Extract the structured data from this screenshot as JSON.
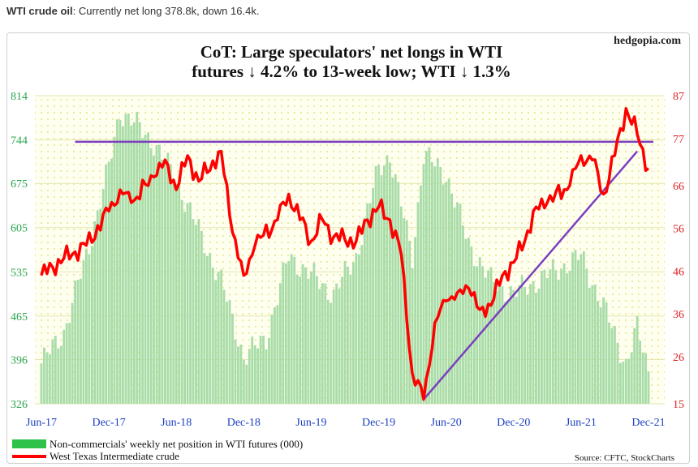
{
  "caption": {
    "bold": "WTI crude oil",
    "text": ": Currently net long 378.8k, down 16.4k."
  },
  "colors": {
    "bars": "#a8dca8",
    "line": "#ff0000",
    "hline": "#7b3fbf",
    "plot_bg": "#fffff0",
    "dots": "#eaea99"
  },
  "chart_data": {
    "type": "bar",
    "title": "CoT: Large speculators' net longs in WTI",
    "subtitle": "futures ↓ 4.2% to 13-week low; WTI ↓ 1.3%",
    "watermark": "hedgopia.com",
    "source": "Source: CFTC, StockCharts",
    "left_axis": {
      "ticks": [
        326,
        396,
        465,
        535,
        605,
        675,
        744,
        814
      ],
      "range": [
        326,
        814
      ]
    },
    "right_axis": {
      "ticks": [
        15,
        26,
        36,
        46,
        56,
        66,
        77,
        87
      ],
      "range": [
        15,
        87
      ]
    },
    "x_ticks": [
      "Jun-17",
      "Dec-17",
      "Jun-18",
      "Dec-18",
      "Jun-19",
      "Dec-19",
      "Jun-20",
      "Dec-20",
      "Jun-21",
      "Dec-21"
    ],
    "legend": [
      "Non-commercials' weekly net position in WTI futures (000)",
      "West Texas Intermediate crude"
    ],
    "grid": true,
    "horizontal_line": 741,
    "trend_line": {
      "from": [
        "Apr-20",
        16
      ],
      "to": [
        "Nov-21",
        74
      ]
    },
    "series": [
      {
        "name": "Non-commercials' weekly net position in WTI futures (000)",
        "axis": "left",
        "points": [
          [
            "Jun-17",
            390
          ],
          [
            "Aug-17",
            440
          ],
          [
            "Oct-17",
            560
          ],
          [
            "Dec-17",
            700
          ],
          [
            "Jan-18",
            790
          ],
          [
            "Feb-18",
            775
          ],
          [
            "Apr-18",
            740
          ],
          [
            "Jun-18",
            680
          ],
          [
            "Aug-18",
            600
          ],
          [
            "Oct-18",
            520
          ],
          [
            "Dec-18",
            400
          ],
          [
            "Feb-19",
            430
          ],
          [
            "Apr-19",
            560
          ],
          [
            "Jun-19",
            530
          ],
          [
            "Aug-19",
            500
          ],
          [
            "Oct-19",
            560
          ],
          [
            "Dec-19",
            700
          ],
          [
            "Jan-20",
            720
          ],
          [
            "Mar-20",
            560
          ],
          [
            "Apr-20",
            720
          ],
          [
            "Jun-20",
            690
          ],
          [
            "Aug-20",
            580
          ],
          [
            "Oct-20",
            520
          ],
          [
            "Dec-20",
            500
          ],
          [
            "Feb-21",
            520
          ],
          [
            "Apr-21",
            540
          ],
          [
            "Jun-21",
            560
          ],
          [
            "Aug-21",
            480
          ],
          [
            "Oct-21",
            390
          ],
          [
            "Nov-21",
            445
          ],
          [
            "Dec-21",
            378.8
          ]
        ]
      },
      {
        "name": "West Texas Intermediate crude",
        "axis": "right",
        "points": [
          [
            "Jun-17",
            45
          ],
          [
            "Aug-17",
            49
          ],
          [
            "Oct-17",
            52
          ],
          [
            "Dec-17",
            60
          ],
          [
            "Jan-18",
            65
          ],
          [
            "Feb-18",
            62
          ],
          [
            "Apr-18",
            68
          ],
          [
            "May-18",
            72
          ],
          [
            "Jun-18",
            65
          ],
          [
            "Jul-18",
            73
          ],
          [
            "Aug-18",
            67
          ],
          [
            "Oct-18",
            74
          ],
          [
            "Nov-18",
            55
          ],
          [
            "Dec-18",
            45
          ],
          [
            "Jan-19",
            52
          ],
          [
            "Mar-19",
            58
          ],
          [
            "Apr-19",
            64
          ],
          [
            "Jun-19",
            53
          ],
          [
            "Jul-19",
            58
          ],
          [
            "Aug-19",
            54
          ],
          [
            "Oct-19",
            53
          ],
          [
            "Nov-19",
            58
          ],
          [
            "Dec-19",
            61
          ],
          [
            "Jan-20",
            58
          ],
          [
            "Feb-20",
            50
          ],
          [
            "Mar-20",
            22
          ],
          [
            "Apr-20",
            16
          ],
          [
            "May-20",
            34
          ],
          [
            "Jun-20",
            39
          ],
          [
            "Jul-20",
            41
          ],
          [
            "Aug-20",
            42
          ],
          [
            "Sep-20",
            37
          ],
          [
            "Oct-20",
            38
          ],
          [
            "Nov-20",
            45
          ],
          [
            "Dec-20",
            48
          ],
          [
            "Jan-21",
            53
          ],
          [
            "Feb-21",
            61
          ],
          [
            "Mar-21",
            62
          ],
          [
            "May-21",
            66
          ],
          [
            "Jun-21",
            73
          ],
          [
            "Jul-21",
            72
          ],
          [
            "Aug-21",
            64
          ],
          [
            "Sep-21",
            73
          ],
          [
            "Oct-21",
            84
          ],
          [
            "Nov-21",
            78
          ],
          [
            "Dec-21",
            70
          ]
        ]
      }
    ]
  }
}
